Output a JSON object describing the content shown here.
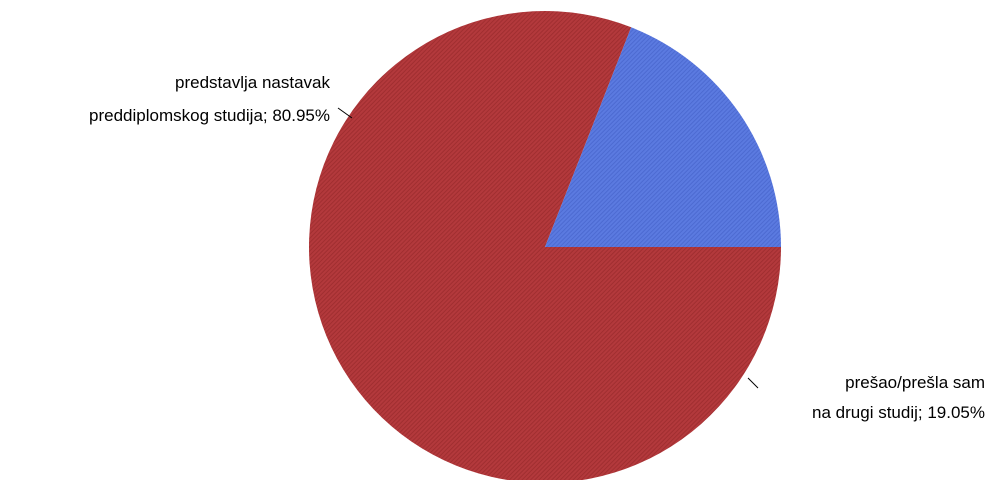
{
  "chart_data": {
    "type": "pie",
    "title": "",
    "slices": [
      {
        "label_lines": [
          "predstavlja nastavak",
          "preddiplomskog studija; 80.95%"
        ],
        "value": 80.95,
        "color": "#b3393c",
        "hatch_color": "#8f2427"
      },
      {
        "label_lines": [
          "prešao/prešla sam",
          "na drugi studij; 19.05%"
        ],
        "value": 19.05,
        "color": "#5b7ae0",
        "hatch_color": "#3f5cc4"
      }
    ],
    "legend": "none"
  }
}
